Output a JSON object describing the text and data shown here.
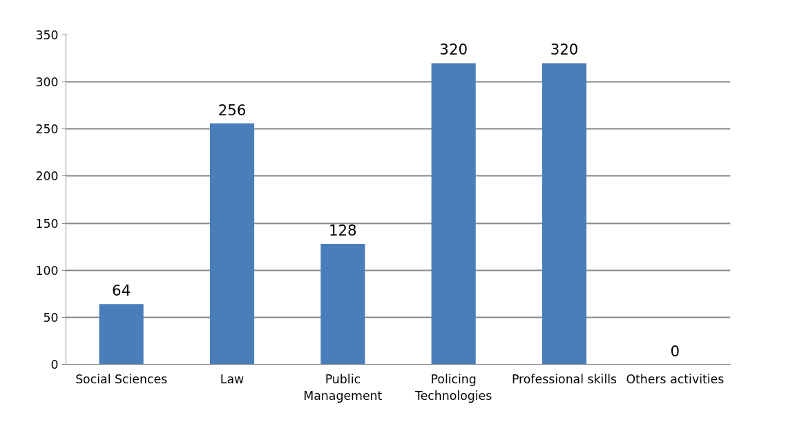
{
  "chart_data": {
    "type": "bar",
    "categories": [
      "Social Sciences",
      "Law",
      "Public\nManagement",
      "Policing\nTechnologies",
      "Professional skills",
      "Others activities"
    ],
    "values": [
      64,
      256,
      128,
      320,
      320,
      0
    ],
    "color": "#4a7ebb",
    "ylim": [
      0,
      350
    ],
    "yticks": [
      0,
      50,
      100,
      150,
      200,
      250,
      300,
      350
    ],
    "grid": "y",
    "data_labels": true
  }
}
